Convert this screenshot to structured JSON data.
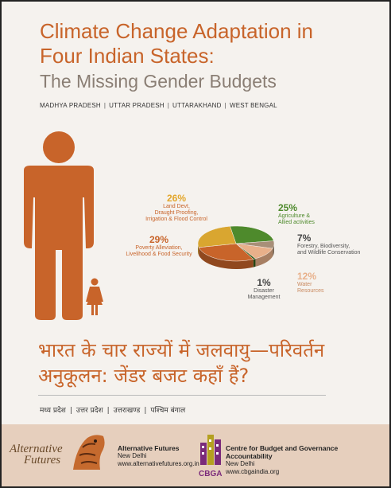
{
  "header": {
    "title_line1": "Climate Change Adaptation in",
    "title_line2": "Four Indian States:",
    "subtitle": "The Missing Gender Budgets",
    "states": [
      "MADHYA PRADESH",
      "UTTAR PRADESH",
      "UTTARAKHAND",
      "WEST BENGAL"
    ],
    "separator": "|"
  },
  "chart_data": {
    "type": "pie",
    "slices": [
      {
        "label_lines": [
          "Agriculture &",
          "Allied activities"
        ],
        "value": 25,
        "pct_label": "25%",
        "color": "#4e8a2c"
      },
      {
        "label_lines": [
          "Forestry, Biodiversity,",
          "and Wildlife Conservation"
        ],
        "value": 7,
        "pct_label": "7%",
        "color": "#a88f78"
      },
      {
        "label_lines": [
          "Water",
          "Resources"
        ],
        "value": 12,
        "pct_label": "12%",
        "color": "#e8b08a"
      },
      {
        "label_lines": [
          "Disaster",
          "Management"
        ],
        "value": 1,
        "pct_label": "1%",
        "color": "#2f5e1c"
      },
      {
        "label_lines": [
          "Poverty Alleviation,",
          "Livelihood & Food Security"
        ],
        "value": 29,
        "pct_label": "29%",
        "color": "#c8642a"
      },
      {
        "label_lines": [
          "Land Devt,",
          "Draught Proofing,",
          "Irrigation  & Flood Control"
        ],
        "value": 26,
        "pct_label": "26%",
        "color": "#d9a630"
      }
    ]
  },
  "hindi": {
    "title_line1": "भारत के चार राज्यों में जलवायु—परिवर्तन",
    "title_line2": "अनुकूलन: जेंडर बजट कहाँ हैं?",
    "states": [
      "मध्य प्रदेश",
      "उत्तर प्रदेश",
      "उत्तराखण्ड",
      "पश्चिम बंगाल"
    ],
    "separator": "|"
  },
  "footer": {
    "af_logo_line1": "Alternative",
    "af_logo_line2": "Futures",
    "af_name": "Alternative Futures",
    "af_city": "New Delhi",
    "af_url": "www.alternativefutures.org.in",
    "cbga_logo": "CBGA",
    "cbga_name": "Centre for Budget and Governance Accountability",
    "cbga_city": "New Delhi",
    "cbga_url": "www.cbgaindia.org"
  },
  "colors": {
    "accent": "#c8642a",
    "footer_bg": "#e6cfbd",
    "page_bg": "#f5f2ee"
  }
}
